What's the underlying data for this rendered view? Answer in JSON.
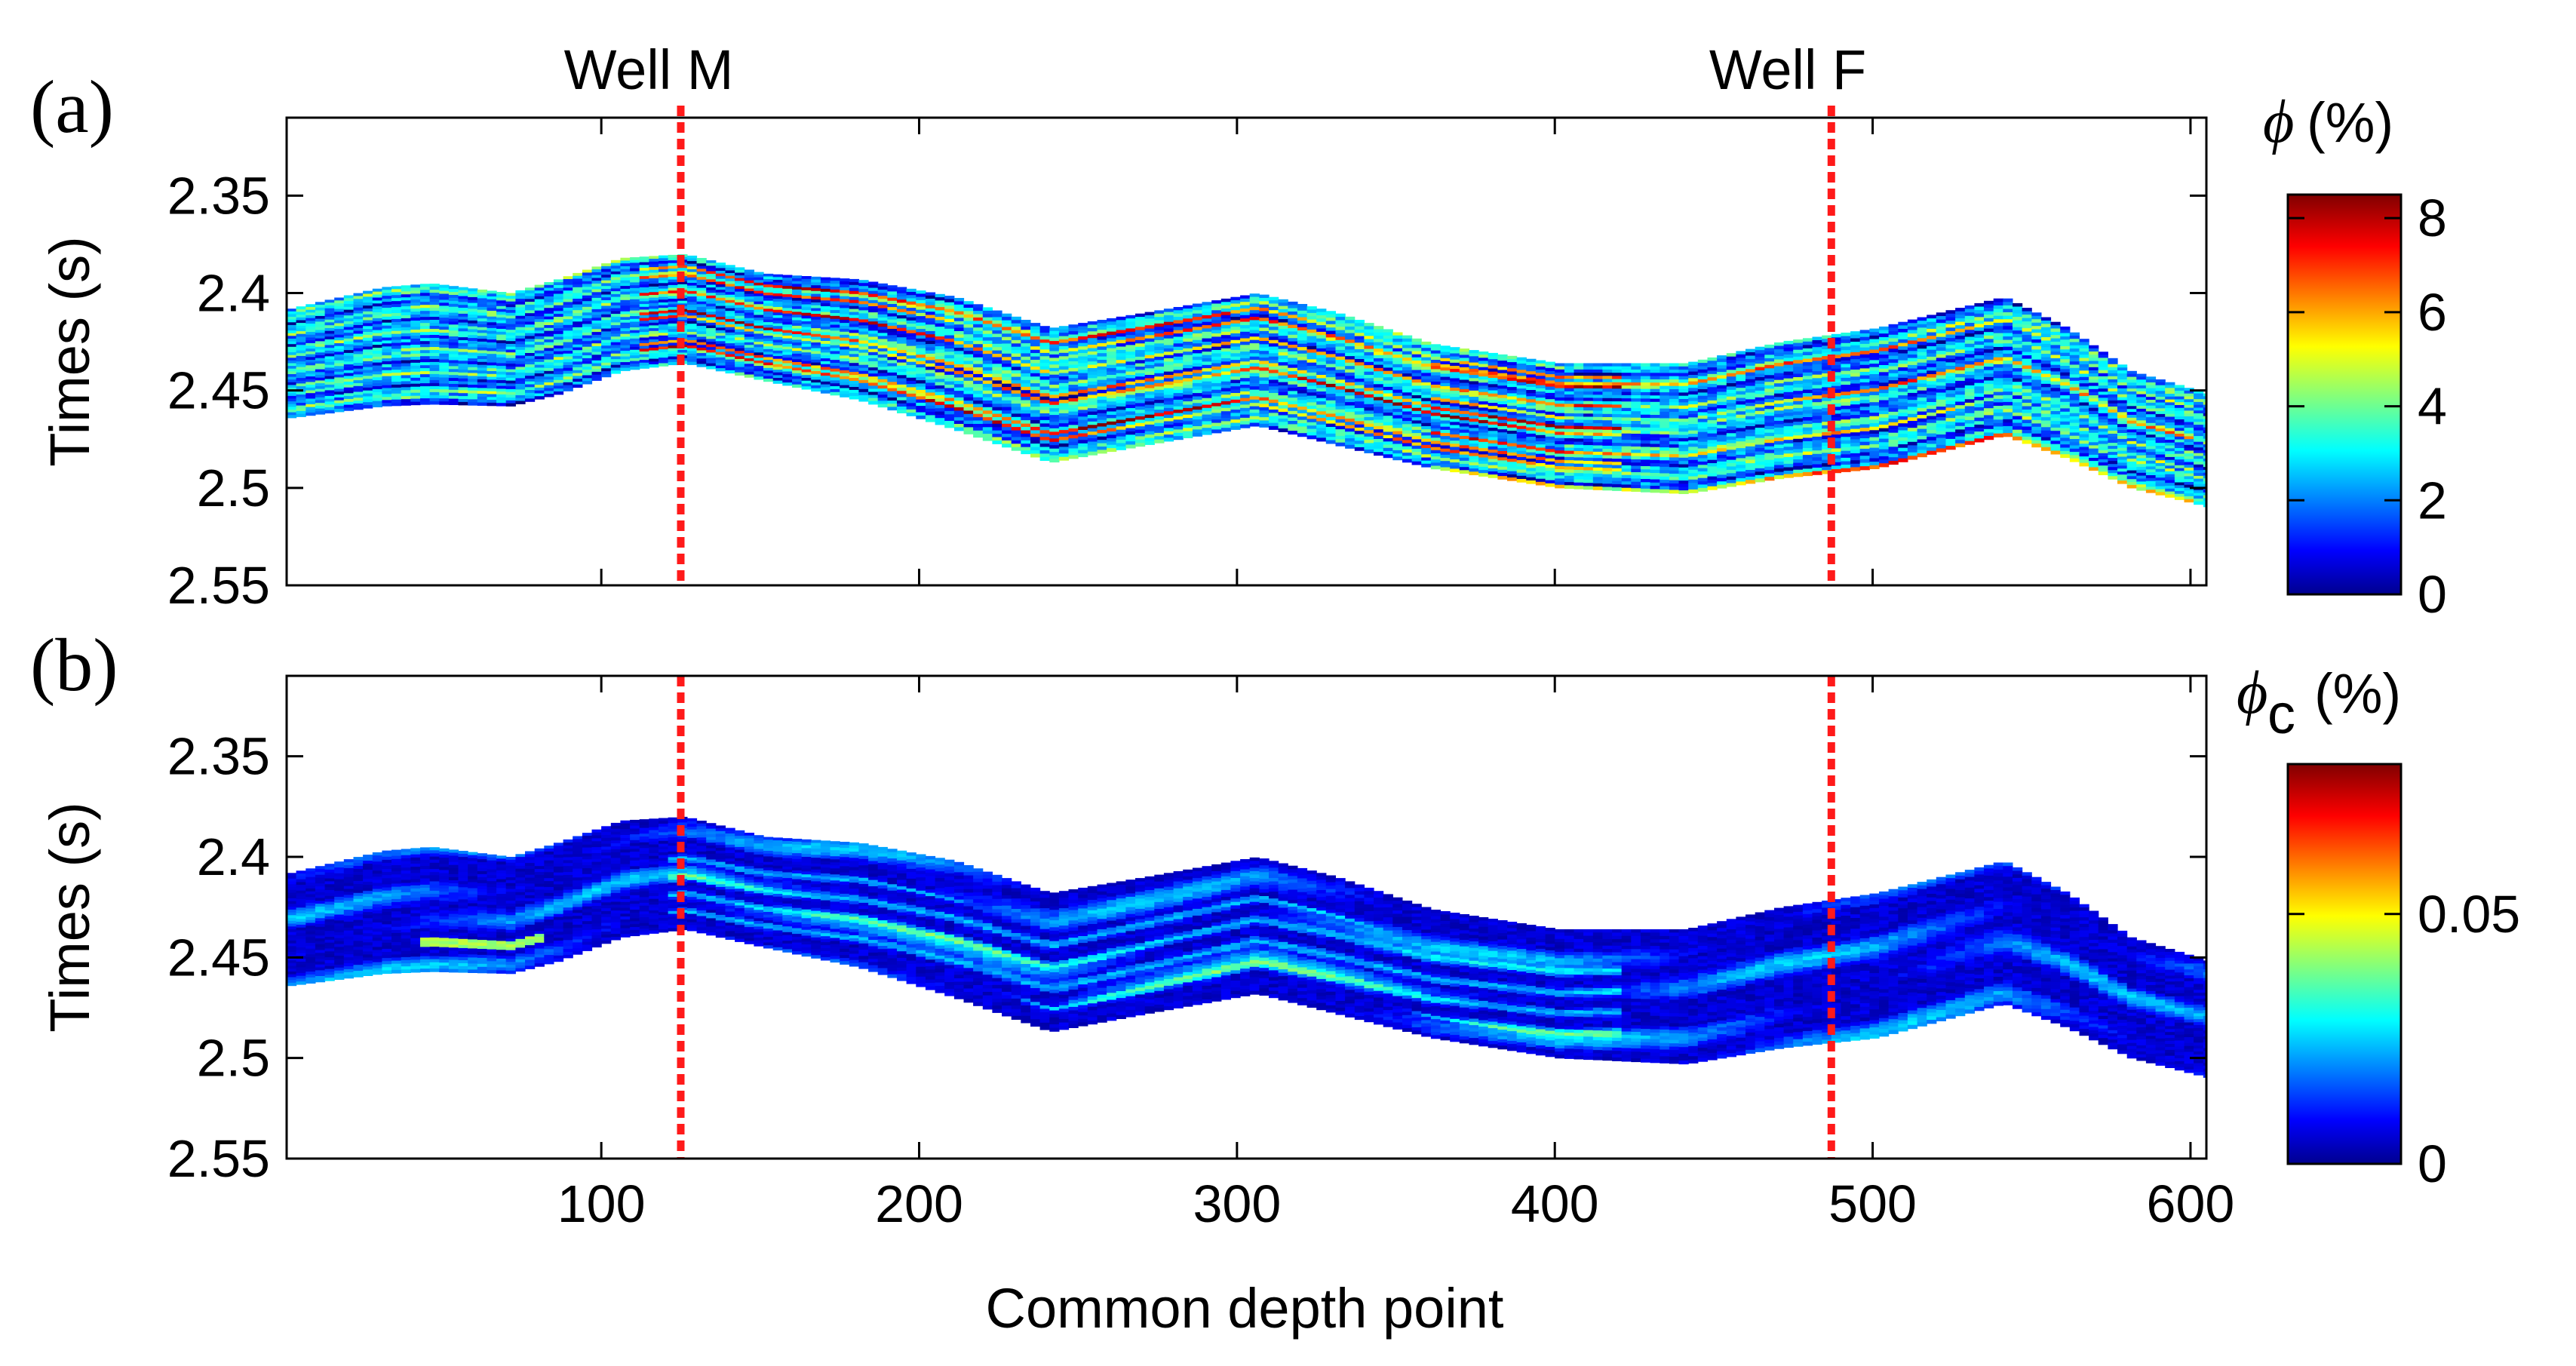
{
  "chart_data": [
    {
      "type": "heatmap",
      "panel_label": "(a)",
      "well_labels": [
        "Well M",
        "Well F"
      ],
      "wells": [
        {
          "name": "Well M",
          "cdp": 125,
          "color": "#ff1a1a"
        },
        {
          "name": "Well F",
          "cdp": 487,
          "color": "#ff1a1a"
        }
      ],
      "ylabel": "Times (s)",
      "xlim": [
        1,
        605
      ],
      "ylim": [
        2.55,
        2.31
      ],
      "yticks": [
        2.35,
        2.4,
        2.45,
        2.5,
        2.55
      ],
      "ytick_labels": [
        "2.35",
        "2.4",
        "2.45",
        "2.5",
        "2.55"
      ],
      "horizon": {
        "cdp": [
          1,
          30,
          45,
          70,
          85,
          105,
          125,
          150,
          180,
          210,
          240,
          270,
          305,
          330,
          360,
          400,
          440,
          470,
          500,
          540,
          560,
          580,
          605
        ],
        "top": [
          2.408,
          2.397,
          2.395,
          2.4,
          2.393,
          2.382,
          2.38,
          2.39,
          2.393,
          2.402,
          2.418,
          2.41,
          2.4,
          2.41,
          2.426,
          2.436,
          2.436,
          2.425,
          2.418,
          2.402,
          2.418,
          2.44,
          2.452
        ],
        "bottom": [
          2.464,
          2.458,
          2.457,
          2.458,
          2.452,
          2.44,
          2.436,
          2.445,
          2.455,
          2.47,
          2.487,
          2.478,
          2.468,
          2.478,
          2.49,
          2.5,
          2.503,
          2.495,
          2.49,
          2.473,
          2.485,
          2.5,
          2.51
        ]
      },
      "colorbar": {
        "title": "ϕ (%)",
        "symbol": "ϕ",
        "unit": "(%)",
        "min": 0,
        "max": 8.5,
        "ticks": [
          0,
          2,
          4,
          6,
          8
        ],
        "tick_labels": [
          "0",
          "2",
          "4",
          "6",
          "8"
        ],
        "colormap": "jet"
      }
    },
    {
      "type": "heatmap",
      "panel_label": "(b)",
      "ylabel": "Times (s)",
      "xlabel": "Common depth point",
      "xlim": [
        1,
        605
      ],
      "xticks": [
        100,
        200,
        300,
        400,
        500,
        600
      ],
      "xtick_labels": [
        "100",
        "200",
        "300",
        "400",
        "500",
        "600"
      ],
      "ylim": [
        2.55,
        2.31
      ],
      "yticks": [
        2.35,
        2.4,
        2.45,
        2.5,
        2.55
      ],
      "ytick_labels": [
        "2.35",
        "2.4",
        "2.45",
        "2.5",
        "2.55"
      ],
      "wells": [
        {
          "name": "Well M",
          "cdp": 125,
          "color": "#ff1a1a"
        },
        {
          "name": "Well F",
          "cdp": 487,
          "color": "#ff1a1a"
        }
      ],
      "colorbar": {
        "title": "ϕc (%)",
        "symbol": "ϕ",
        "subscript": "c",
        "unit": "(%)",
        "min": 0,
        "max": 0.08,
        "ticks": [
          0,
          0.05
        ],
        "tick_labels": [
          "0",
          "0.05"
        ],
        "colormap": "jet"
      }
    }
  ]
}
